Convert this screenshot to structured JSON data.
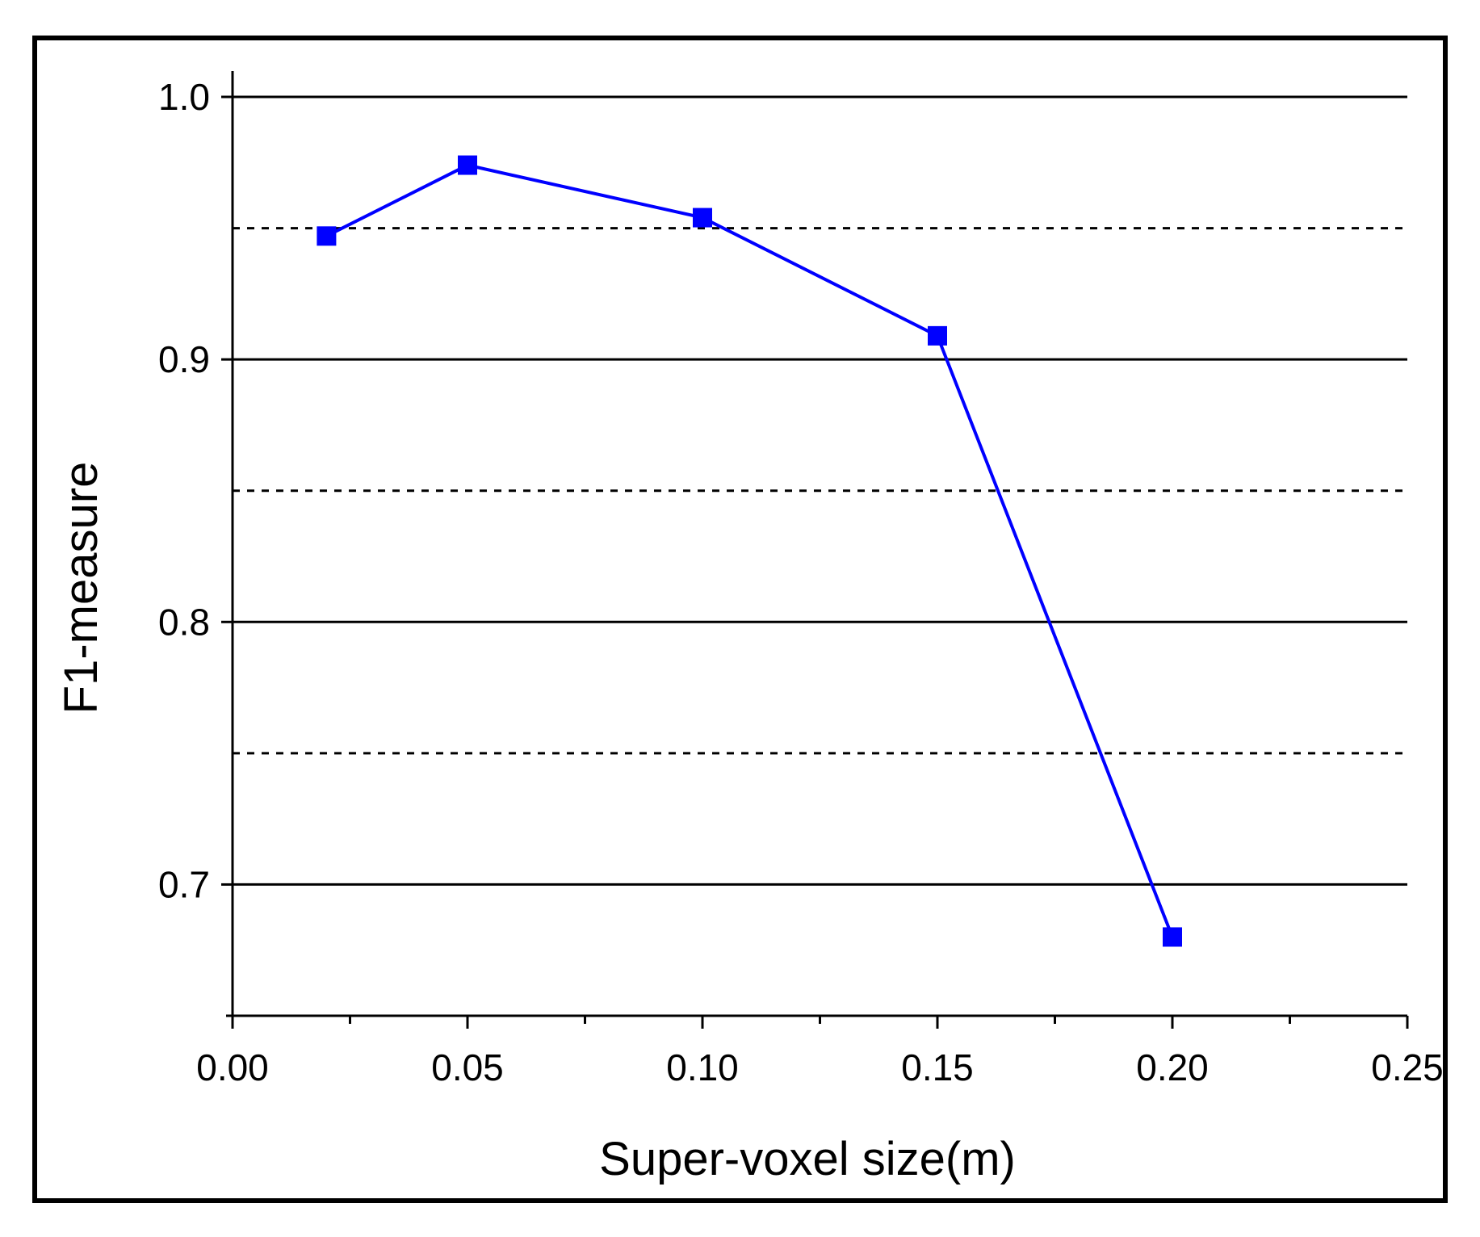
{
  "chart_data": {
    "type": "line",
    "xlabel": "Super-voxel size(m)",
    "ylabel": "F1-measure",
    "xlim": [
      0.0,
      0.25
    ],
    "ylim": [
      0.65,
      1.0
    ],
    "x_ticks": [
      "0.00",
      "0.05",
      "0.10",
      "0.15",
      "0.20",
      "0.25"
    ],
    "y_ticks": [
      "0.7",
      "0.8",
      "0.9",
      "1.0"
    ],
    "x_tick_values": [
      0.0,
      0.05,
      0.1,
      0.15,
      0.2,
      0.25
    ],
    "y_tick_values": [
      0.7,
      0.8,
      0.9,
      1.0
    ],
    "grid_major": [
      0.7,
      0.8,
      0.9,
      1.0
    ],
    "grid_minor": [
      0.75,
      0.85,
      0.95
    ],
    "series": [
      {
        "color": "#0000ff",
        "marker": "square",
        "x": [
          0.02,
          0.05,
          0.1,
          0.15,
          0.2
        ],
        "y": [
          0.947,
          0.974,
          0.954,
          0.909,
          0.68
        ]
      }
    ]
  }
}
